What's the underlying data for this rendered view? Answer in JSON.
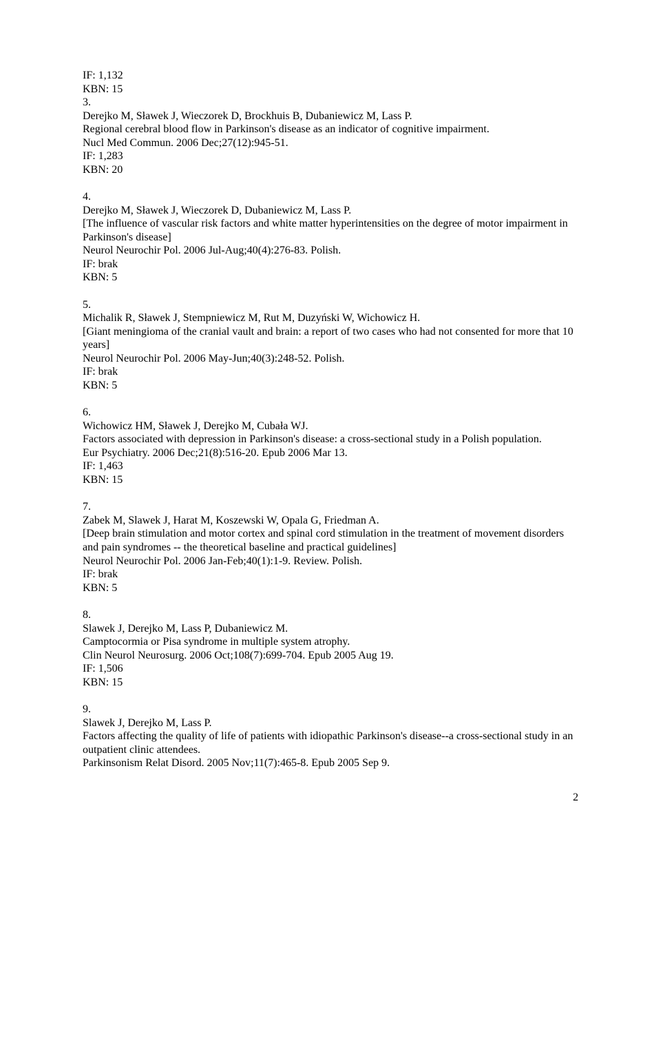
{
  "entries": [
    {
      "lines": [
        "IF: 1,132",
        "KBN: 15",
        "3.",
        "Derejko M, Sławek J, Wieczorek D, Brockhuis B, Dubaniewicz M, Lass P.",
        "Regional cerebral blood flow in Parkinson's disease as an indicator of cognitive impairment.",
        "Nucl Med Commun. 2006 Dec;27(12):945-51.",
        "IF: 1,283",
        "KBN: 20"
      ]
    },
    {
      "lines": [
        "4.",
        "Derejko M, Sławek J, Wieczorek D, Dubaniewicz M, Lass P.",
        "[The influence of vascular risk factors and white matter hyperintensities on the degree of motor impairment in Parkinson's disease]",
        "Neurol Neurochir Pol. 2006 Jul-Aug;40(4):276-83. Polish.",
        "IF: brak",
        "KBN: 5"
      ]
    },
    {
      "lines": [
        "5.",
        "Michalik R, Sławek J, Stempniewicz M, Rut M, Duzyński W, Wichowicz H.",
        "[Giant meningioma of the cranial vault and brain: a report of two cases who had not consented for more that 10 years]",
        "Neurol Neurochir Pol. 2006 May-Jun;40(3):248-52. Polish.",
        "IF: brak",
        "KBN: 5"
      ]
    },
    {
      "lines": [
        "6.",
        "Wichowicz HM, Sławek J, Derejko M, Cubała WJ.",
        "Factors associated with depression in Parkinson's disease: a cross-sectional study in a Polish population.",
        "Eur Psychiatry. 2006 Dec;21(8):516-20. Epub 2006 Mar 13.",
        "IF: 1,463",
        "KBN: 15"
      ]
    },
    {
      "lines": [
        "7.",
        "Zabek M, Slawek J, Harat M, Koszewski W, Opala G, Friedman A.",
        "[Deep brain stimulation and motor cortex and spinal cord stimulation in the treatment of movement disorders and pain syndromes -- the theoretical baseline and practical guidelines]",
        "Neurol Neurochir Pol. 2006 Jan-Feb;40(1):1-9. Review. Polish.",
        "IF: brak",
        "KBN: 5"
      ]
    },
    {
      "lines": [
        "8.",
        "Slawek J, Derejko M, Lass P, Dubaniewicz M.",
        "Camptocormia or Pisa syndrome in multiple system atrophy.",
        "Clin Neurol Neurosurg. 2006 Oct;108(7):699-704. Epub 2005 Aug 19.",
        "IF: 1,506",
        "KBN: 15"
      ]
    },
    {
      "lines": [
        "9.",
        "Slawek J, Derejko M, Lass P.",
        "Factors affecting the quality of life of patients with idiopathic Parkinson's disease--a cross-sectional study in an outpatient clinic attendees.",
        "Parkinsonism Relat Disord. 2005 Nov;11(7):465-8. Epub 2005 Sep 9."
      ]
    }
  ],
  "page_number": "2"
}
